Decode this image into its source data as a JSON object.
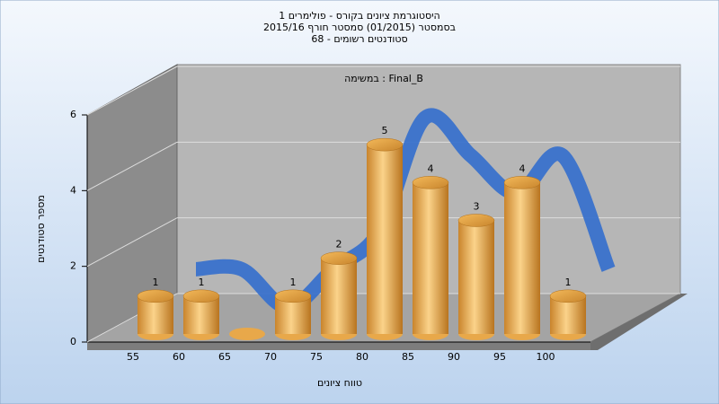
{
  "chart_data": {
    "type": "bar",
    "title": [
      "היסטוגרמת ציונים בקורס - פולימרים 1",
      "בסמסטר  (01/2015)  סמסטר חורף 2015/16",
      "סטודנטים רשומים - 68"
    ],
    "subtitle": "במשימה : Final_B",
    "x_label": "טווח ציונים",
    "y_label": "מספר סטודנטים",
    "categories": [
      "55",
      "60",
      "65",
      "70",
      "75",
      "80",
      "85",
      "90",
      "95",
      "100"
    ],
    "values": [
      1,
      1,
      0,
      1,
      2,
      5,
      4,
      3,
      4,
      1
    ],
    "color": "#e8a84a",
    "line_color": "#3a72cc",
    "ylim": [
      0,
      6
    ],
    "yticks": [
      0,
      2,
      4,
      6
    ],
    "grid": true
  }
}
